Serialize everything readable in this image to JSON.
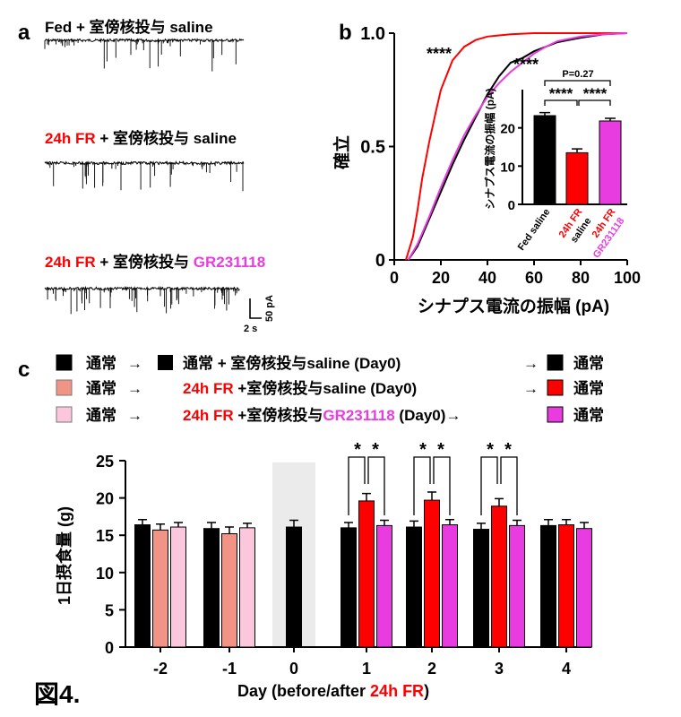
{
  "figure_label": "図4.",
  "panel_a": {
    "letter": "a",
    "traces": [
      {
        "label": [
          {
            "text": "Fed",
            "color": "#000000"
          },
          {
            "text": " + 室傍核投与 saline",
            "color": "#000000"
          }
        ]
      },
      {
        "label": [
          {
            "text": "24h FR",
            "color": "#ff0000"
          },
          {
            "text": " + 室傍核投与 saline",
            "color": "#000000"
          }
        ]
      },
      {
        "label": [
          {
            "text": "24h FR",
            "color": "#ff0000"
          },
          {
            "text": " + 室傍核投与 ",
            "color": "#000000"
          },
          {
            "text": "GR231118",
            "color": "#e83ce0"
          }
        ]
      }
    ],
    "scale_bar": {
      "y": "50 pA",
      "x": "2 s"
    }
  },
  "panel_b": {
    "letter": "b",
    "ylabel": "確立",
    "xlabel": "シナプス電流の振幅 (pA)",
    "xticks": [
      "0",
      "20",
      "40",
      "60",
      "80",
      "100"
    ],
    "yticks": [
      "0",
      "0.5",
      "1.0"
    ],
    "sig_red": "****",
    "sig_pink": "****",
    "inset": {
      "ylabel": "シナプス電流の振幅 (pA)",
      "yticks": [
        "0",
        "10",
        "20"
      ],
      "p_label": "P=0.27",
      "sig_left": "****",
      "sig_right": "****",
      "cat_labels": [
        {
          "lines": [
            "Fed saline"
          ],
          "color": "#000000"
        },
        {
          "lines": [
            "24h FR",
            "saline"
          ],
          "colors": [
            "#ff0000",
            "#000000"
          ]
        },
        {
          "lines": [
            "24h FR",
            "GR231118"
          ],
          "colors": [
            "#ff0000",
            "#e83ce0"
          ]
        }
      ]
    }
  },
  "panel_c": {
    "letter": "c",
    "ylabel": "1日摂食量 (g)",
    "xlabel_parts": [
      {
        "text": "Day (before/after ",
        "color": "#000000"
      },
      {
        "text": "24h FR",
        "color": "#ff0000"
      },
      {
        "text": ")",
        "color": "#000000"
      }
    ],
    "legend": [
      {
        "pre_color": "#000000",
        "pre": "通常",
        "arrow": "→",
        "mid_color": "#000000",
        "mid": [
          {
            "text": "通常 + 室傍核投与saline (Day0)",
            "color": "#000000"
          }
        ],
        "arrow2": "→",
        "post_color": "#000000",
        "post": "通常"
      },
      {
        "pre_color": "#f29485",
        "pre": "通常",
        "arrow": "→",
        "mid_color": null,
        "mid": [
          {
            "text": "24h FR",
            "color": "#ff0000"
          },
          {
            "text": " +室傍核投与saline (Day0)",
            "color": "#000000"
          }
        ],
        "arrow2": "→",
        "post_color": "#ff0000",
        "post": "通常"
      },
      {
        "pre_color": "#fbc7dc",
        "pre": "通常",
        "arrow": "→",
        "mid_color": null,
        "mid": [
          {
            "text": "24h FR",
            "color": "#ff0000"
          },
          {
            "text": " +室傍核投与",
            "color": "#000000"
          },
          {
            "text": "GR231118",
            "color": "#e83ce0"
          },
          {
            "text": " (Day0)→",
            "color": "#000000"
          }
        ],
        "arrow2": "",
        "post_color": "#e83ce0",
        "post": "通常"
      }
    ]
  },
  "chart_data": [
    {
      "type": "line",
      "panel": "b",
      "xlabel": "シナプス電流の振幅 (pA)",
      "ylabel": "確立",
      "xlim": [
        0,
        100
      ],
      "ylim": [
        0,
        1.0
      ],
      "series": [
        {
          "color": "#000000",
          "x": [
            6,
            10,
            15,
            20,
            25,
            30,
            35,
            40,
            45,
            50,
            55,
            60,
            65,
            70,
            80,
            90,
            100
          ],
          "y": [
            0,
            0.06,
            0.18,
            0.3,
            0.42,
            0.53,
            0.63,
            0.73,
            0.81,
            0.87,
            0.89,
            0.92,
            0.94,
            0.96,
            0.98,
            0.995,
            1.0
          ]
        },
        {
          "color": "#ff0000",
          "x": [
            5,
            8,
            10,
            12,
            15,
            18,
            20,
            25,
            30,
            35,
            40,
            45,
            50,
            60,
            70,
            100
          ],
          "y": [
            0,
            0.1,
            0.22,
            0.36,
            0.52,
            0.66,
            0.75,
            0.88,
            0.94,
            0.97,
            0.985,
            0.99,
            0.995,
            1.0,
            1.0,
            1.0
          ]
        },
        {
          "color": "#e83ce0",
          "x": [
            6,
            10,
            15,
            20,
            25,
            30,
            35,
            40,
            45,
            50,
            55,
            60,
            65,
            70,
            80,
            90,
            100
          ],
          "y": [
            0,
            0.07,
            0.19,
            0.32,
            0.44,
            0.55,
            0.64,
            0.72,
            0.78,
            0.83,
            0.87,
            0.91,
            0.94,
            0.965,
            0.985,
            0.995,
            1.0
          ]
        }
      ]
    },
    {
      "type": "bar",
      "panel": "b-inset",
      "ylabel": "シナプス電流の振幅 (pA)",
      "ylim": [
        0,
        30
      ],
      "categories": [
        "Fed saline",
        "24h FR saline",
        "24h FR GR231118"
      ],
      "values": [
        23.2,
        13.5,
        21.8
      ],
      "errors": [
        0.8,
        1.0,
        0.7
      ],
      "colors": [
        "#000000",
        "#ff0000",
        "#e83ce0"
      ]
    },
    {
      "type": "bar",
      "panel": "c",
      "ylabel": "1日摂食量 (g)",
      "ylim": [
        0,
        25
      ],
      "yticks": [
        "0",
        "5",
        "10",
        "15",
        "20",
        "25"
      ],
      "categories": [
        "-2",
        "-1",
        "0",
        "1",
        "2",
        "3",
        "4"
      ],
      "groups": [
        {
          "bars": [
            {
              "value": 16.4,
              "err": 0.7,
              "color": "#000000"
            },
            {
              "value": 15.7,
              "err": 0.8,
              "color": "#f29485"
            },
            {
              "value": 16.1,
              "err": 0.6,
              "color": "#fbc7dc"
            }
          ]
        },
        {
          "bars": [
            {
              "value": 15.9,
              "err": 0.8,
              "color": "#000000"
            },
            {
              "value": 15.2,
              "err": 0.9,
              "color": "#f29485"
            },
            {
              "value": 16.0,
              "err": 0.6,
              "color": "#fbc7dc"
            }
          ]
        },
        {
          "bars": [
            {
              "value": 16.1,
              "err": 0.9,
              "color": "#000000"
            }
          ],
          "shaded": true
        },
        {
          "bars": [
            {
              "value": 16.0,
              "err": 0.7,
              "color": "#000000"
            },
            {
              "value": 19.6,
              "err": 1.0,
              "color": "#ff0000"
            },
            {
              "value": 16.3,
              "err": 0.7,
              "color": "#e83ce0"
            }
          ],
          "sig": "*"
        },
        {
          "bars": [
            {
              "value": 16.1,
              "err": 0.8,
              "color": "#000000"
            },
            {
              "value": 19.7,
              "err": 1.1,
              "color": "#ff0000"
            },
            {
              "value": 16.4,
              "err": 0.7,
              "color": "#e83ce0"
            }
          ],
          "sig": "*"
        },
        {
          "bars": [
            {
              "value": 15.8,
              "err": 0.8,
              "color": "#000000"
            },
            {
              "value": 18.9,
              "err": 1.0,
              "color": "#ff0000"
            },
            {
              "value": 16.3,
              "err": 0.7,
              "color": "#e83ce0"
            }
          ],
          "sig": "*"
        },
        {
          "bars": [
            {
              "value": 16.3,
              "err": 0.8,
              "color": "#000000"
            },
            {
              "value": 16.4,
              "err": 0.7,
              "color": "#ff0000"
            },
            {
              "value": 15.9,
              "err": 0.8,
              "color": "#e83ce0"
            }
          ]
        }
      ]
    }
  ]
}
